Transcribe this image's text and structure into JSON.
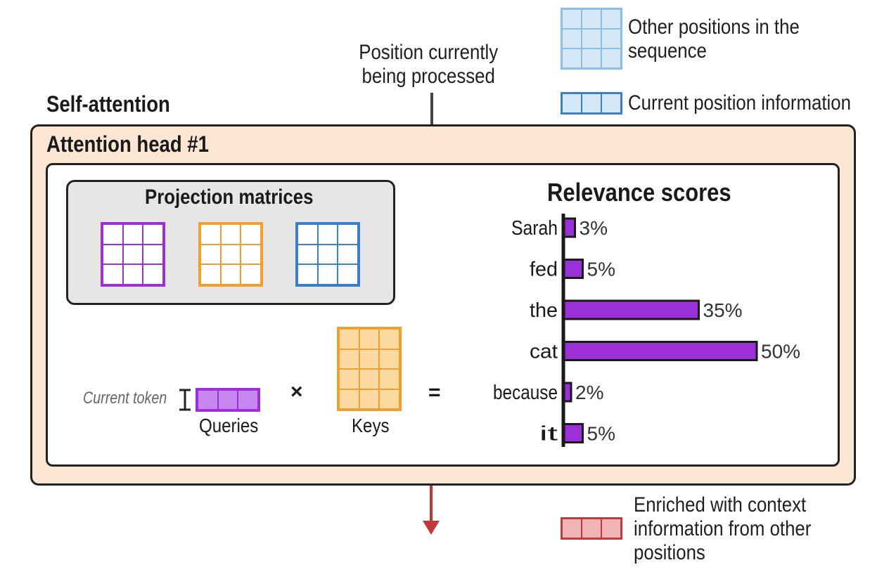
{
  "legend": {
    "other_positions": "Other positions in the sequence",
    "current_position": "Current position information",
    "enriched": "Enriched with context information from other positions"
  },
  "top_annotation": "Position currently being processed",
  "self_attention_title": "Self-attention",
  "head_title": "Attention head #1",
  "projection_title": "Projection matrices",
  "current_token_label": "Current token",
  "queries_label": "Queries",
  "keys_label": "Keys",
  "times_symbol": "×",
  "equals_symbol": "=",
  "colors": {
    "purple": "#9b30d9",
    "purple_fill": "#c887ee",
    "orange": "#f0a030",
    "orange_fill": "#fbd9a0",
    "blue": "#3a7fc7",
    "light_blue": "#8dbfe6",
    "light_blue_fill": "#d5e8f7",
    "red": "#c0393b",
    "red_fill": "#f1b4b4",
    "panel_peach": "#fae6d2",
    "panel_gray": "#e6e6e6"
  },
  "chart_data": {
    "type": "bar",
    "orientation": "horizontal",
    "title": "Relevance scores",
    "categories": [
      "Sarah",
      "fed",
      "the",
      "cat",
      "because",
      "it"
    ],
    "values": [
      3,
      5,
      35,
      50,
      2,
      5
    ],
    "value_labels": [
      "3%",
      "5%",
      "35%",
      "50%",
      "2%",
      "5%"
    ],
    "unit": "%"
  }
}
